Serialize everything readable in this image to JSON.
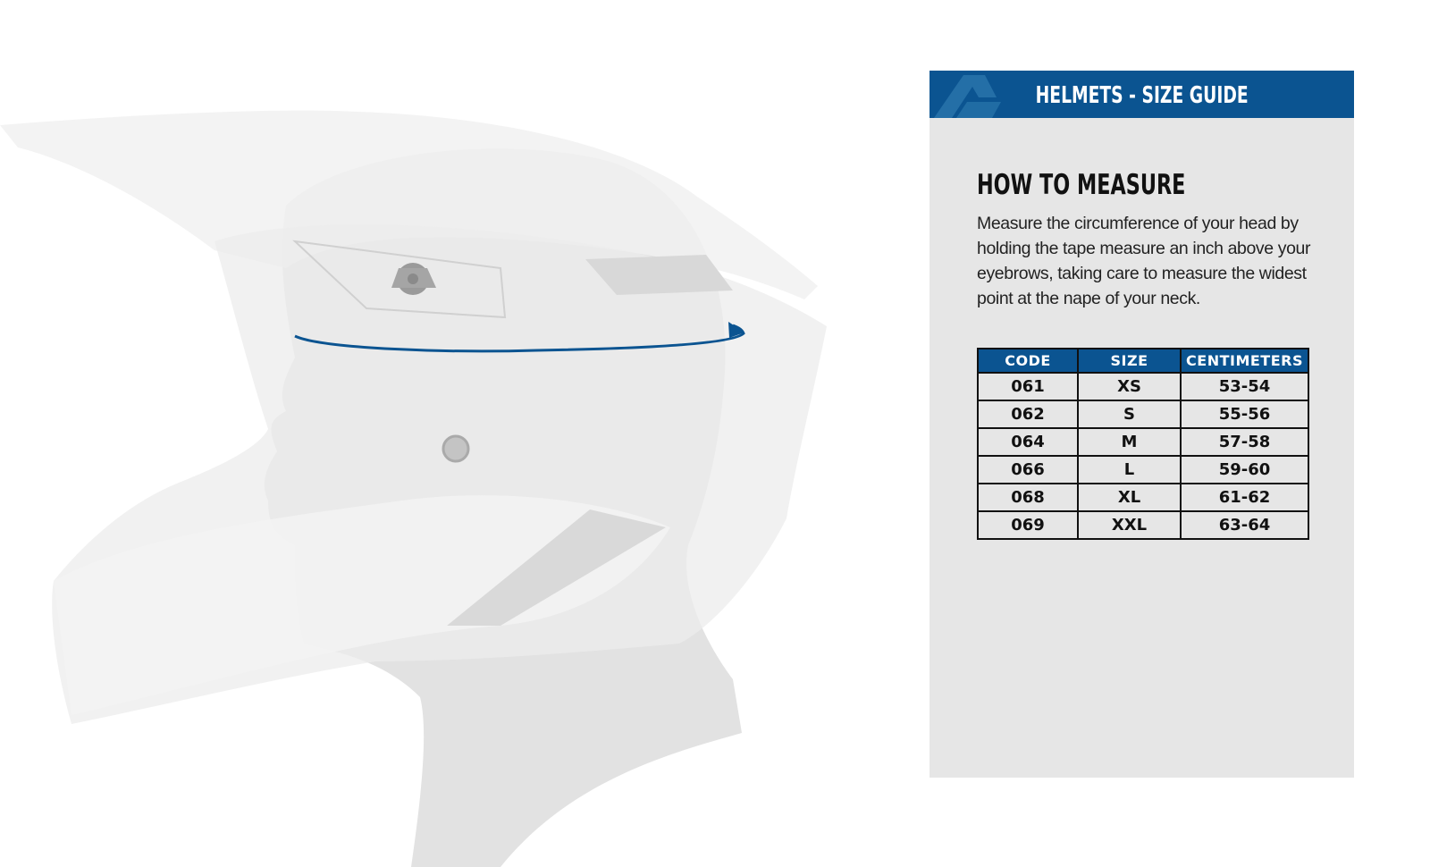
{
  "guide": {
    "title": "HELMETS - SIZE GUIDE",
    "brand_color": "#0b5491",
    "logo_icon": "brand-logo-icon"
  },
  "measure": {
    "heading": "HOW TO MEASURE",
    "text": "Measure the circumference of your head by holding the tape measure an inch above your eyebrows, taking care to measure the widest point at the nape of your neck."
  },
  "table": {
    "headers": [
      "CODE",
      "SIZE",
      "CENTIMETERS"
    ],
    "rows": [
      [
        "061",
        "XS",
        "53-54"
      ],
      [
        "062",
        "S",
        "55-56"
      ],
      [
        "064",
        "M",
        "57-58"
      ],
      [
        "066",
        "L",
        "59-60"
      ],
      [
        "068",
        "XL",
        "61-62"
      ],
      [
        "069",
        "XXL",
        "63-64"
      ]
    ]
  }
}
